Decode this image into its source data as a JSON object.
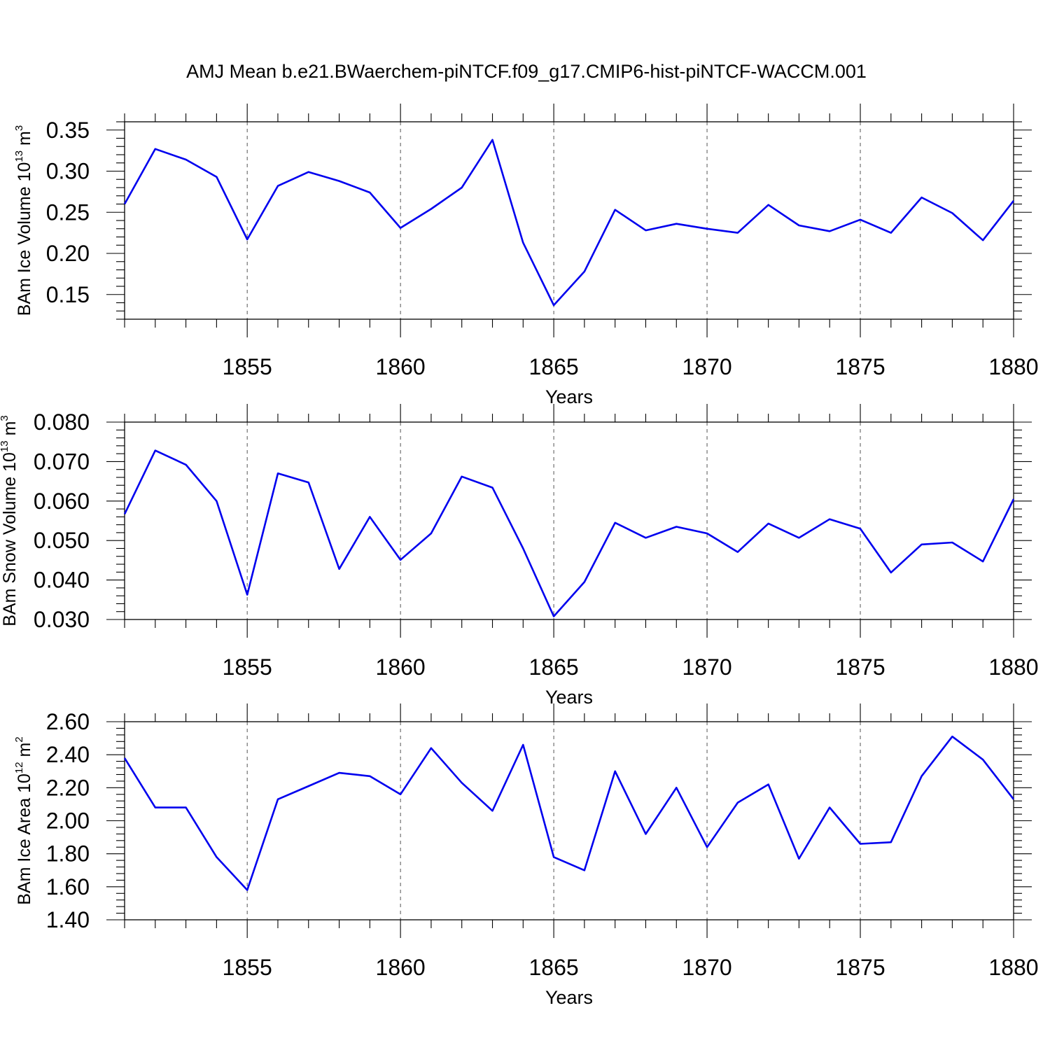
{
  "title": "AMJ Mean b.e21.BWaerchem-piNTCF.f09_g17.CMIP6-hist-piNTCF-WACCM.001",
  "chart_data": [
    {
      "type": "line",
      "ylabel": {
        "main": "BAm Ice Volume 10",
        "exp": "13",
        "unit": " m",
        "unit_exp": "3"
      },
      "xlabel": "Years",
      "xlim": [
        1851,
        1880
      ],
      "ylim": [
        0.12,
        0.36
      ],
      "yticks": [
        0.15,
        0.2,
        0.25,
        0.3,
        0.35
      ],
      "ytick_labels": [
        "0.15",
        "0.20",
        "0.25",
        "0.30",
        "0.35"
      ],
      "xticks": [
        1855,
        1860,
        1865,
        1870,
        1875,
        1880
      ],
      "xtick_labels": [
        "1855",
        "1860",
        "1865",
        "1870",
        "1875",
        "1880"
      ],
      "series_color": "#0000ee",
      "x": [
        1851,
        1852,
        1853,
        1854,
        1855,
        1856,
        1857,
        1858,
        1859,
        1860,
        1861,
        1862,
        1863,
        1864,
        1865,
        1866,
        1867,
        1868,
        1869,
        1870,
        1871,
        1872,
        1873,
        1874,
        1875,
        1876,
        1877,
        1878,
        1879,
        1880
      ],
      "values": [
        0.26,
        0.327,
        0.314,
        0.293,
        0.217,
        0.282,
        0.299,
        0.288,
        0.274,
        0.231,
        0.254,
        0.28,
        0.338,
        0.213,
        0.137,
        0.178,
        0.253,
        0.228,
        0.236,
        0.23,
        0.225,
        0.259,
        0.234,
        0.227,
        0.241,
        0.225,
        0.268,
        0.249,
        0.216,
        0.264
      ]
    },
    {
      "type": "line",
      "ylabel": {
        "main": "BAm Snow Volume 10",
        "exp": "13",
        "unit": " m",
        "unit_exp": "3"
      },
      "xlabel": "Years",
      "xlim": [
        1851,
        1880
      ],
      "ylim": [
        0.03,
        0.08
      ],
      "yticks": [
        0.03,
        0.04,
        0.05,
        0.06,
        0.07,
        0.08
      ],
      "ytick_labels": [
        "0.030",
        "0.040",
        "0.050",
        "0.060",
        "0.070",
        "0.080"
      ],
      "xticks": [
        1855,
        1860,
        1865,
        1870,
        1875,
        1880
      ],
      "xtick_labels": [
        "1855",
        "1860",
        "1865",
        "1870",
        "1875",
        "1880"
      ],
      "series_color": "#0000ee",
      "x": [
        1851,
        1852,
        1853,
        1854,
        1855,
        1856,
        1857,
        1858,
        1859,
        1860,
        1861,
        1862,
        1863,
        1864,
        1865,
        1866,
        1867,
        1868,
        1869,
        1870,
        1871,
        1872,
        1873,
        1874,
        1875,
        1876,
        1877,
        1878,
        1879,
        1880
      ],
      "values": [
        0.0567,
        0.0728,
        0.0692,
        0.06,
        0.0363,
        0.067,
        0.0647,
        0.0428,
        0.056,
        0.0451,
        0.0518,
        0.0662,
        0.0634,
        0.048,
        0.0308,
        0.0395,
        0.0545,
        0.0507,
        0.0535,
        0.0518,
        0.0471,
        0.0543,
        0.0507,
        0.0554,
        0.053,
        0.0419,
        0.049,
        0.0495,
        0.0447,
        0.0605
      ]
    },
    {
      "type": "line",
      "ylabel": {
        "main": "BAm Ice Area 10",
        "exp": "12",
        "unit": " m",
        "unit_exp": "2"
      },
      "xlabel": "Years",
      "xlim": [
        1851,
        1880
      ],
      "ylim": [
        1.4,
        2.6
      ],
      "yticks": [
        1.4,
        1.6,
        1.8,
        2.0,
        2.2,
        2.4,
        2.6
      ],
      "ytick_labels": [
        "1.40",
        "1.60",
        "1.80",
        "2.00",
        "2.20",
        "2.40",
        "2.60"
      ],
      "xticks": [
        1855,
        1860,
        1865,
        1870,
        1875,
        1880
      ],
      "xtick_labels": [
        "1855",
        "1860",
        "1865",
        "1870",
        "1875",
        "1880"
      ],
      "series_color": "#0000ee",
      "x": [
        1851,
        1852,
        1853,
        1854,
        1855,
        1856,
        1857,
        1858,
        1859,
        1860,
        1861,
        1862,
        1863,
        1864,
        1865,
        1866,
        1867,
        1868,
        1869,
        1870,
        1871,
        1872,
        1873,
        1874,
        1875,
        1876,
        1877,
        1878,
        1879,
        1880
      ],
      "values": [
        2.38,
        2.08,
        2.08,
        1.78,
        1.58,
        2.13,
        2.21,
        2.29,
        2.27,
        2.16,
        2.44,
        2.23,
        2.06,
        2.46,
        1.78,
        1.7,
        2.3,
        1.92,
        2.2,
        1.84,
        2.11,
        2.22,
        1.77,
        2.08,
        1.86,
        1.87,
        2.27,
        2.51,
        2.37,
        2.13
      ]
    }
  ]
}
